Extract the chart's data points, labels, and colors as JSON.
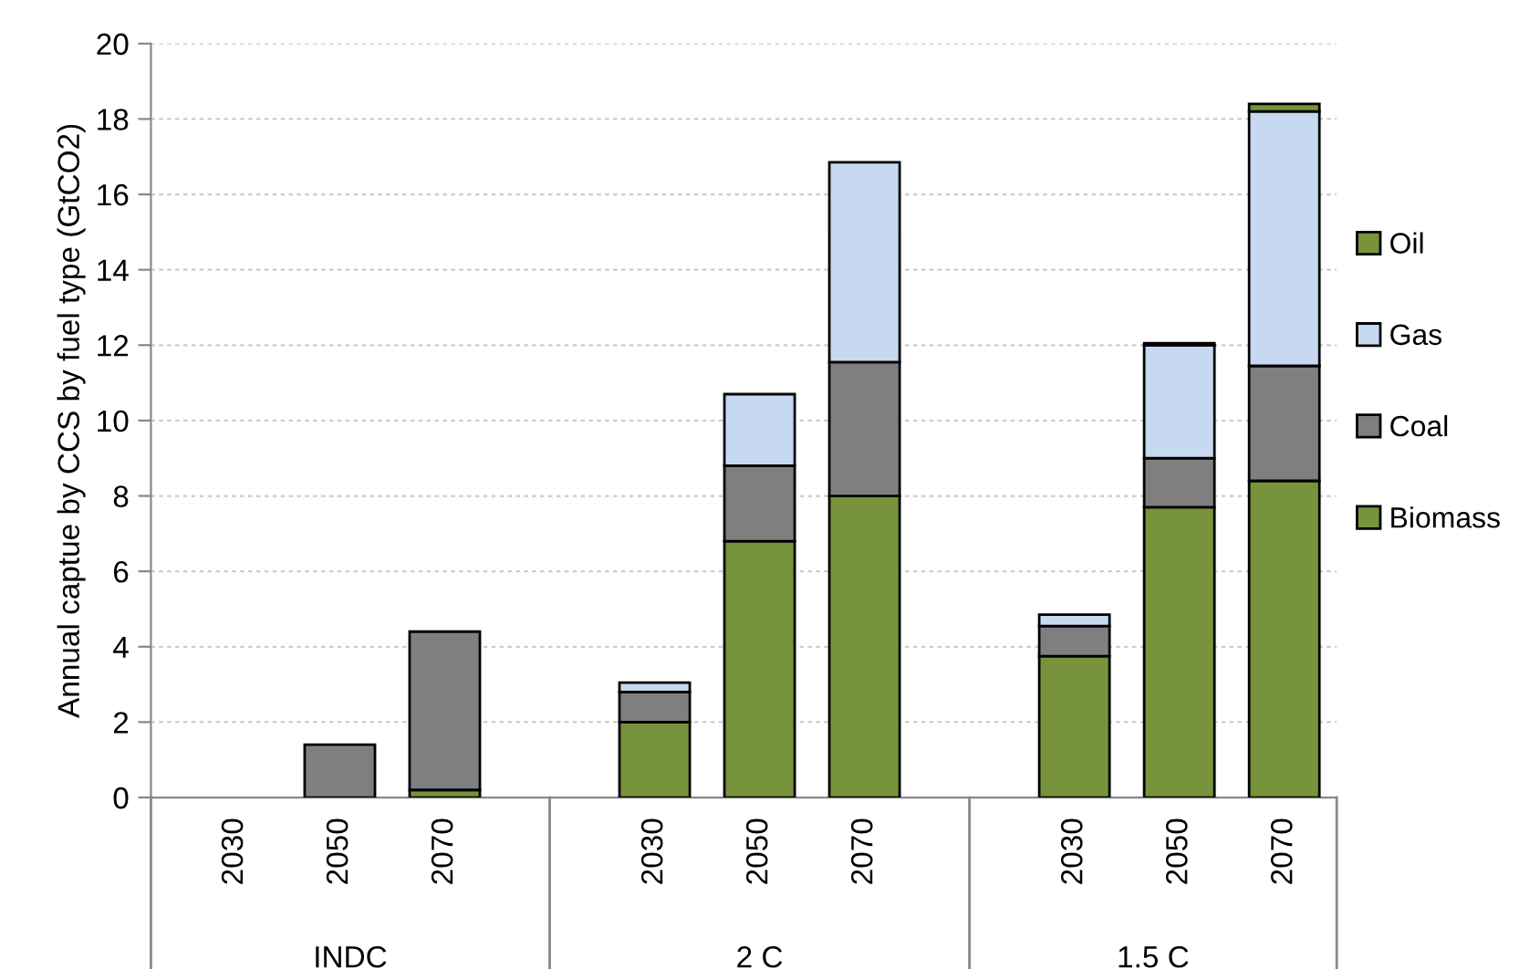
{
  "chart_data": {
    "type": "bar",
    "stacked": true,
    "ylabel": "Annual captue by CCS by fuel type (GtCO2)",
    "categories": [
      "2030",
      "2050",
      "2070",
      null,
      "2030",
      "2050",
      "2070",
      null,
      "2030",
      "2050",
      "2070"
    ],
    "series": [
      {
        "name": "Biomass",
        "color": "#77933c",
        "values": [
          0,
          0,
          0.2,
          null,
          2.0,
          6.8,
          8.0,
          null,
          3.75,
          7.7,
          8.4
        ]
      },
      {
        "name": "Coal",
        "color": "#7f7f7f",
        "values": [
          0,
          1.4,
          4.2,
          null,
          0.8,
          2.0,
          3.55,
          null,
          0.8,
          1.3,
          3.05
        ]
      },
      {
        "name": "Gas",
        "color": "#c6d9f1",
        "values": [
          0,
          0,
          0,
          null,
          0.25,
          1.9,
          5.3,
          null,
          0.3,
          3.0,
          6.75
        ]
      },
      {
        "name": "Oil",
        "color": "#77933c",
        "values": [
          0,
          0,
          0,
          null,
          0,
          0,
          0,
          null,
          0,
          0.05,
          0.2
        ]
      }
    ],
    "annotations": [
      "INDC",
      "2 C",
      "1.5 C"
    ],
    "ylim": [
      0,
      20
    ],
    "yticks": [
      0,
      2,
      4,
      6,
      8,
      10,
      12,
      14,
      16,
      18,
      20
    ],
    "grid": "y",
    "legend": "right"
  }
}
